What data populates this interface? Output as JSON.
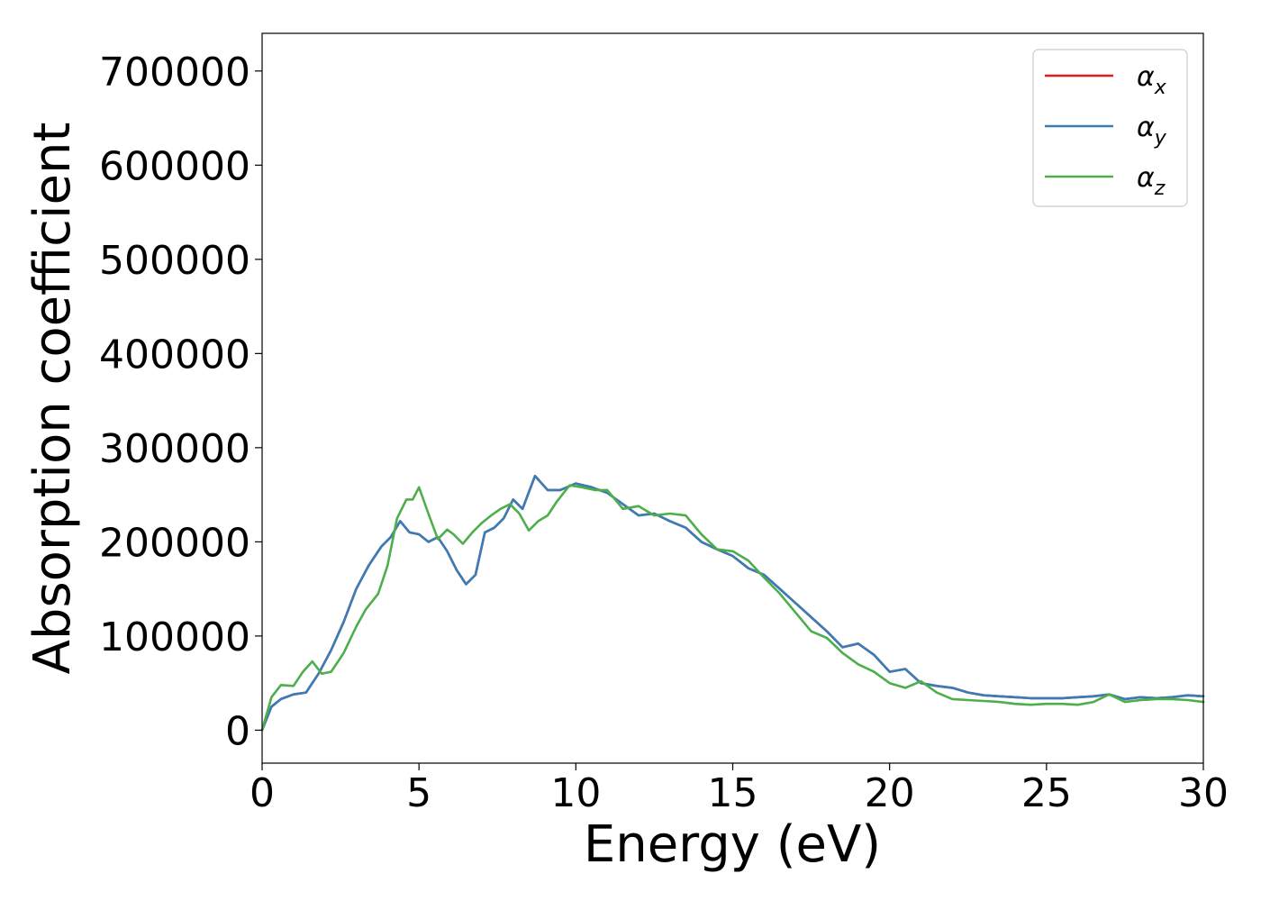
{
  "chart_data": {
    "type": "line",
    "xlabel": "Energy (eV)",
    "ylabel": "Absorption coefficient",
    "xlim": [
      0,
      30
    ],
    "ylim": [
      -35000,
      740000
    ],
    "x_ticks": [
      0,
      5,
      10,
      15,
      20,
      25,
      30
    ],
    "y_ticks": [
      0,
      100000,
      200000,
      300000,
      400000,
      500000,
      600000,
      700000
    ],
    "grid": false,
    "legend": {
      "placement": "top-right"
    },
    "series": [
      {
        "name": "α_x",
        "label_base": "α",
        "label_sub": "x",
        "color": "#e41a1c",
        "x": [
          0,
          0.3,
          0.6,
          1.0,
          1.4,
          1.8,
          2.2,
          2.6,
          3.0,
          3.4,
          3.8,
          4.1,
          4.4,
          4.7,
          5.0,
          5.3,
          5.6,
          5.9,
          6.2,
          6.5,
          6.8,
          7.1,
          7.4,
          7.7,
          8.0,
          8.3,
          8.7,
          9.1,
          9.5,
          10.0,
          10.5,
          11.0,
          11.5,
          12.0,
          12.5,
          13.0,
          13.5,
          14.0,
          14.5,
          15.0,
          15.5,
          16.0,
          16.5,
          17.0,
          17.5,
          18.0,
          18.5,
          19.0,
          19.5,
          20.0,
          20.5,
          21.0,
          21.5,
          22.0,
          22.5,
          23.0,
          23.5,
          24.0,
          24.5,
          25.0,
          25.5,
          26.0,
          26.5,
          27.0,
          27.5,
          28.0,
          28.5,
          29.0,
          29.5,
          30.0
        ],
        "values": [
          0,
          25000,
          33000,
          38000,
          40000,
          60000,
          85000,
          115000,
          150000,
          175000,
          195000,
          205000,
          222000,
          210000,
          208000,
          200000,
          205000,
          190000,
          170000,
          155000,
          165000,
          210000,
          215000,
          225000,
          245000,
          235000,
          270000,
          255000,
          255000,
          262000,
          258000,
          252000,
          240000,
          228000,
          230000,
          222000,
          215000,
          200000,
          192000,
          185000,
          172000,
          165000,
          150000,
          135000,
          120000,
          105000,
          88000,
          92000,
          80000,
          62000,
          65000,
          50000,
          47000,
          45000,
          40000,
          37000,
          36000,
          35000,
          34000,
          34000,
          34000,
          35000,
          36000,
          38000,
          33000,
          35000,
          34000,
          35000,
          37000,
          36000
        ]
      },
      {
        "name": "α_y",
        "label_base": "α",
        "label_sub": "y",
        "color": "#377eb8",
        "x": [
          0,
          0.3,
          0.6,
          1.0,
          1.4,
          1.8,
          2.2,
          2.6,
          3.0,
          3.4,
          3.8,
          4.1,
          4.4,
          4.7,
          5.0,
          5.3,
          5.6,
          5.9,
          6.2,
          6.5,
          6.8,
          7.1,
          7.4,
          7.7,
          8.0,
          8.3,
          8.7,
          9.1,
          9.5,
          10.0,
          10.5,
          11.0,
          11.5,
          12.0,
          12.5,
          13.0,
          13.5,
          14.0,
          14.5,
          15.0,
          15.5,
          16.0,
          16.5,
          17.0,
          17.5,
          18.0,
          18.5,
          19.0,
          19.5,
          20.0,
          20.5,
          21.0,
          21.5,
          22.0,
          22.5,
          23.0,
          23.5,
          24.0,
          24.5,
          25.0,
          25.5,
          26.0,
          26.5,
          27.0,
          27.5,
          28.0,
          28.5,
          29.0,
          29.5,
          30.0
        ],
        "values": [
          0,
          25000,
          33000,
          38000,
          40000,
          60000,
          85000,
          115000,
          150000,
          175000,
          195000,
          205000,
          222000,
          210000,
          208000,
          200000,
          205000,
          190000,
          170000,
          155000,
          165000,
          210000,
          215000,
          225000,
          245000,
          235000,
          270000,
          255000,
          255000,
          262000,
          258000,
          252000,
          240000,
          228000,
          230000,
          222000,
          215000,
          200000,
          192000,
          185000,
          172000,
          165000,
          150000,
          135000,
          120000,
          105000,
          88000,
          92000,
          80000,
          62000,
          65000,
          50000,
          47000,
          45000,
          40000,
          37000,
          36000,
          35000,
          34000,
          34000,
          34000,
          35000,
          36000,
          38000,
          33000,
          35000,
          34000,
          35000,
          37000,
          36000
        ]
      },
      {
        "name": "α_z",
        "label_base": "α",
        "label_sub": "z",
        "color": "#4daf4a",
        "x": [
          0,
          0.3,
          0.6,
          1.0,
          1.3,
          1.6,
          1.9,
          2.2,
          2.6,
          3.0,
          3.3,
          3.7,
          4.0,
          4.3,
          4.6,
          4.8,
          5.0,
          5.3,
          5.6,
          5.9,
          6.1,
          6.4,
          6.7,
          7.0,
          7.3,
          7.6,
          7.9,
          8.2,
          8.5,
          8.8,
          9.1,
          9.4,
          9.8,
          10.2,
          10.6,
          11.0,
          11.5,
          12.0,
          12.5,
          13.0,
          13.5,
          14.0,
          14.5,
          15.0,
          15.5,
          16.0,
          16.5,
          17.0,
          17.5,
          18.0,
          18.5,
          19.0,
          19.5,
          20.0,
          20.5,
          21.0,
          21.5,
          22.0,
          22.5,
          23.0,
          23.5,
          24.0,
          24.5,
          25.0,
          25.5,
          26.0,
          26.5,
          27.0,
          27.5,
          28.0,
          28.5,
          29.0,
          29.5,
          30.0
        ],
        "values": [
          0,
          35000,
          48000,
          47000,
          62000,
          73000,
          60000,
          62000,
          82000,
          110000,
          128000,
          145000,
          175000,
          225000,
          245000,
          245000,
          258000,
          230000,
          203000,
          213000,
          208000,
          198000,
          210000,
          220000,
          228000,
          235000,
          240000,
          230000,
          212000,
          222000,
          228000,
          243000,
          260000,
          258000,
          255000,
          255000,
          235000,
          238000,
          228000,
          230000,
          228000,
          208000,
          192000,
          190000,
          180000,
          162000,
          145000,
          125000,
          105000,
          98000,
          82000,
          70000,
          62000,
          50000,
          45000,
          52000,
          40000,
          33000,
          32000,
          31000,
          30000,
          28000,
          27000,
          28000,
          28000,
          27000,
          30000,
          38000,
          30000,
          32000,
          33000,
          33000,
          32000,
          30000
        ]
      }
    ]
  }
}
